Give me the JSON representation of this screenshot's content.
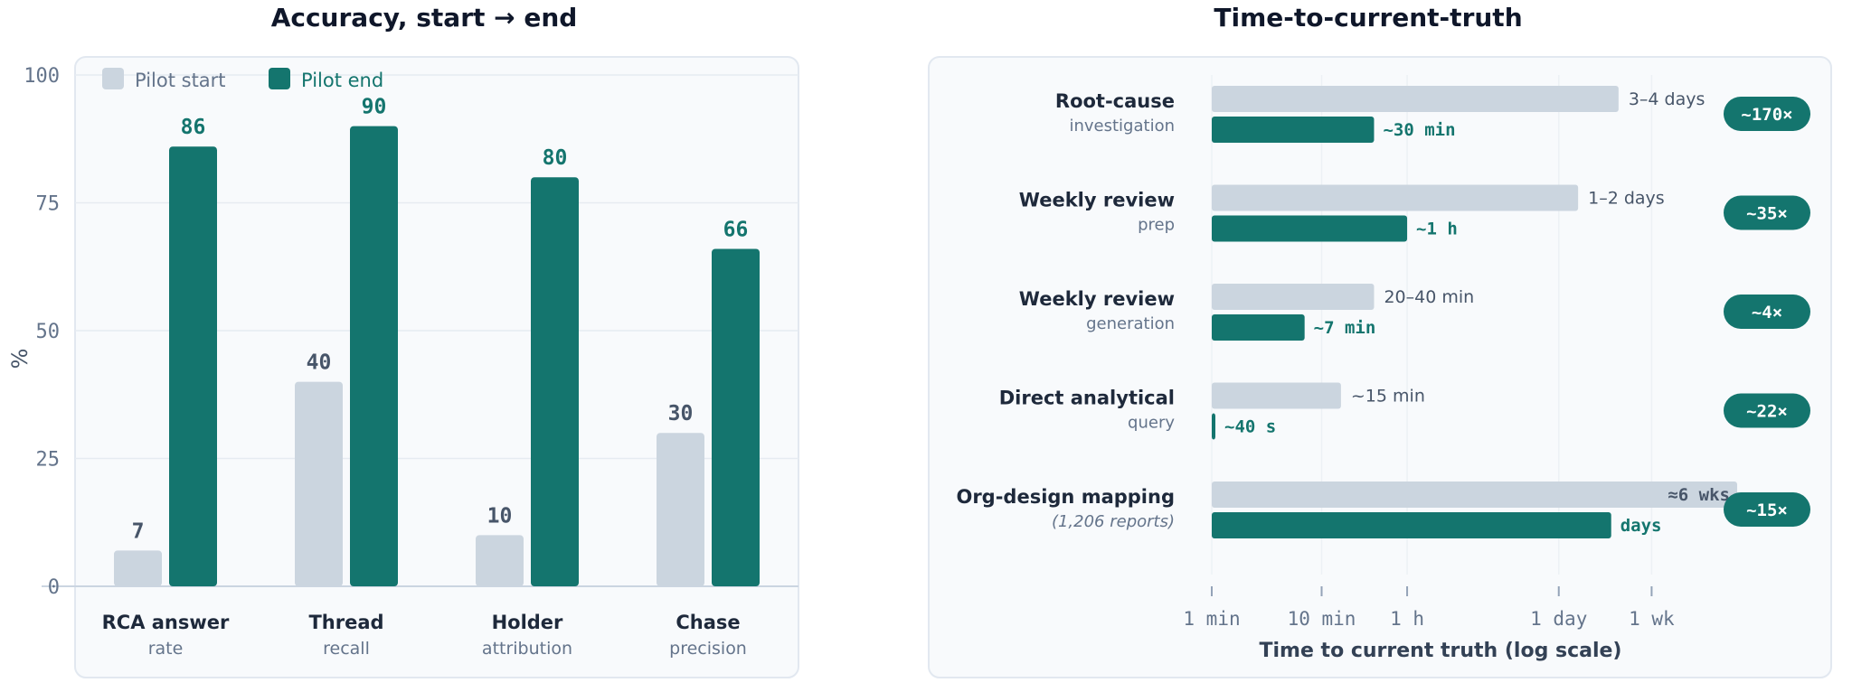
{
  "chart_data": [
    {
      "type": "bar",
      "title": "Accuracy, start → end",
      "ylabel": "%",
      "ylim": [
        0,
        100
      ],
      "yticks": [
        0,
        25,
        50,
        75,
        100
      ],
      "grid": true,
      "legend_position": "top-left",
      "categories": [
        {
          "title": "RCA answer",
          "subtitle": "rate"
        },
        {
          "title": "Thread",
          "subtitle": "recall"
        },
        {
          "title": "Holder",
          "subtitle": "attribution"
        },
        {
          "title": "Chase",
          "subtitle": "precision"
        }
      ],
      "series": [
        {
          "name": "Pilot start",
          "color": "#cbd5df",
          "label_color": "#475569",
          "values": [
            7,
            40,
            10,
            30
          ]
        },
        {
          "name": "Pilot end",
          "color": "#14756e",
          "label_color": "#14756e",
          "values": [
            86,
            90,
            80,
            66
          ]
        }
      ]
    },
    {
      "type": "bar",
      "orientation": "horizontal",
      "title": "Time-to-current-truth",
      "xlabel": "Time to current truth (log scale)",
      "x_scale": "log",
      "x_unit": "minutes",
      "xticks": [
        {
          "label": "1 min",
          "value": 1
        },
        {
          "label": "10 min",
          "value": 10
        },
        {
          "label": "1 h",
          "value": 60
        },
        {
          "label": "1 day",
          "value": 1440
        },
        {
          "label": "1 wk",
          "value": 10080
        }
      ],
      "series_colors": {
        "before": "#cbd5df",
        "after": "#14756e"
      },
      "rows": [
        {
          "title": "Root-cause",
          "subtitle": "investigation",
          "subtitle_italic": false,
          "before_value": 5040,
          "before_label": "3–4 days",
          "after_value": 30,
          "after_label": "~30 min",
          "speedup": "~170×"
        },
        {
          "title": "Weekly review",
          "subtitle": "prep",
          "subtitle_italic": false,
          "before_value": 2160,
          "before_label": "1–2 days",
          "after_value": 60,
          "after_label": "~1 h",
          "speedup": "~35×"
        },
        {
          "title": "Weekly review",
          "subtitle": "generation",
          "subtitle_italic": false,
          "before_value": 30,
          "before_label": "20–40 min",
          "after_value": 7,
          "after_label": "~7 min",
          "speedup": "~4×"
        },
        {
          "title": "Direct analytical",
          "subtitle": "query",
          "subtitle_italic": false,
          "before_value": 15,
          "before_label": "~15 min",
          "after_value": 0.67,
          "after_label": "~40 s",
          "speedup": "~22×"
        },
        {
          "title": "Org-design mapping",
          "subtitle": "(1,206 reports)",
          "subtitle_italic": true,
          "before_value": 60480,
          "before_label": "≈6 wks",
          "after_value": 4320,
          "after_label": "days",
          "speedup": "~15×"
        }
      ]
    }
  ]
}
